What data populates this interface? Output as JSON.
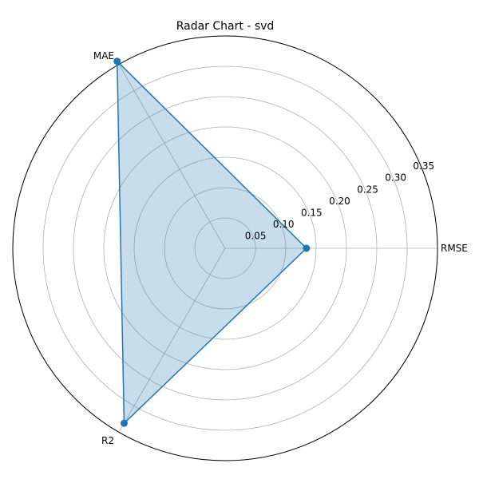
{
  "chart_data": {
    "type": "radar",
    "title": "Radar Chart - svd",
    "categories": [
      "RMSE",
      "MAE",
      "R2"
    ],
    "series": [
      {
        "values": [
          0.134,
          0.356,
          0.333
        ]
      }
    ],
    "rlim": [
      0,
      0.35
    ],
    "rticks": [
      0.05,
      0.1,
      0.15,
      0.2,
      0.25,
      0.3,
      0.35
    ],
    "rtick_labels": [
      "0.05",
      "0.10",
      "0.15",
      "0.20",
      "0.25",
      "0.30",
      "0.35"
    ],
    "grid": true,
    "colors": {
      "line": "#1f77b4",
      "fill": "#1f77b4",
      "grid": "#b0b0b0",
      "frame": "#000000"
    }
  }
}
